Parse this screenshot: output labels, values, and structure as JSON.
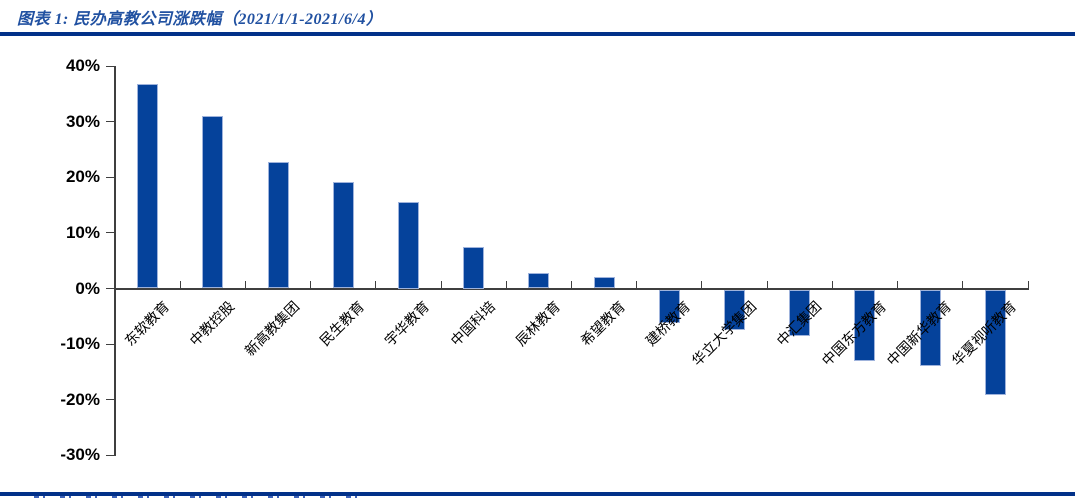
{
  "header": {
    "title": "图表 1:  民办高教公司涨跌幅（2021/1/1-2021/6/4）"
  },
  "chart_data": {
    "type": "bar",
    "title": "民办高教公司涨跌幅（2021/1/1-2021/6/4）",
    "categories": [
      "东软教育",
      "中教控股",
      "新高教集团",
      "民生教育",
      "宇华教育",
      "中国科培",
      "辰林教育",
      "希望教育",
      "建桥教育",
      "华立大学集团",
      "中汇集团",
      "中国东方教育",
      "中国新华教育",
      "华夏视听教育"
    ],
    "values": [
      36.8,
      31.1,
      22.7,
      19.2,
      15.5,
      7.5,
      2.8,
      2.1,
      -6.0,
      -7.2,
      -8.3,
      -12.8,
      -13.7,
      -19.0
    ],
    "value_unit": "%",
    "y_ticks": [
      40,
      30,
      20,
      10,
      0,
      -10,
      -20,
      -30
    ],
    "y_tick_suffix": "%",
    "ylim": [
      -30,
      40
    ],
    "grid": false,
    "legend": "none"
  },
  "colors": {
    "bar_fill": "#05429B",
    "bar_border": "#9FB3DC",
    "divider": "#023189",
    "title_text": "#2151A1",
    "axis": "#3f3f3f"
  }
}
